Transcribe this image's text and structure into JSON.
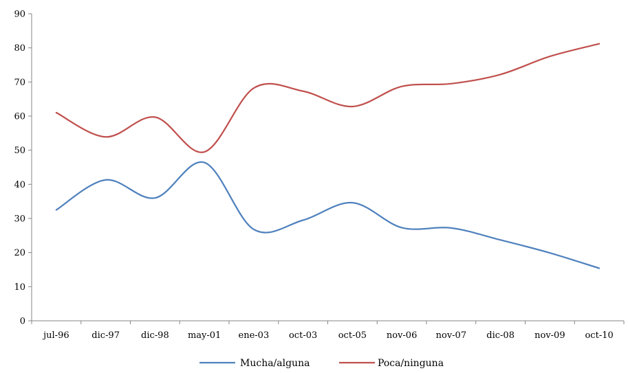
{
  "chart_data": {
    "type": "line",
    "categories": [
      "jul-96",
      "dic-97",
      "dic-98",
      "may-01",
      "ene-03",
      "oct-03",
      "oct-05",
      "nov-06",
      "nov-07",
      "dic-08",
      "nov-09",
      "oct-10"
    ],
    "ylim": [
      0,
      90
    ],
    "yticks": [
      0,
      10,
      20,
      30,
      40,
      50,
      60,
      70,
      80,
      90
    ],
    "grid": false,
    "legend": "bottom",
    "series": [
      {
        "name": "Mucha/alguna",
        "color": "#4F81BD",
        "values": [
          32.5,
          41.3,
          36.0,
          46.4,
          26.8,
          29.5,
          34.6,
          27.3,
          27.2,
          23.7,
          19.9,
          15.4
        ]
      },
      {
        "name": "Poca/ninguna",
        "color": "#C0504D",
        "values": [
          61.0,
          53.9,
          59.7,
          49.5,
          68.2,
          67.3,
          62.8,
          68.7,
          69.5,
          72.2,
          77.5,
          81.2
        ]
      }
    ]
  }
}
